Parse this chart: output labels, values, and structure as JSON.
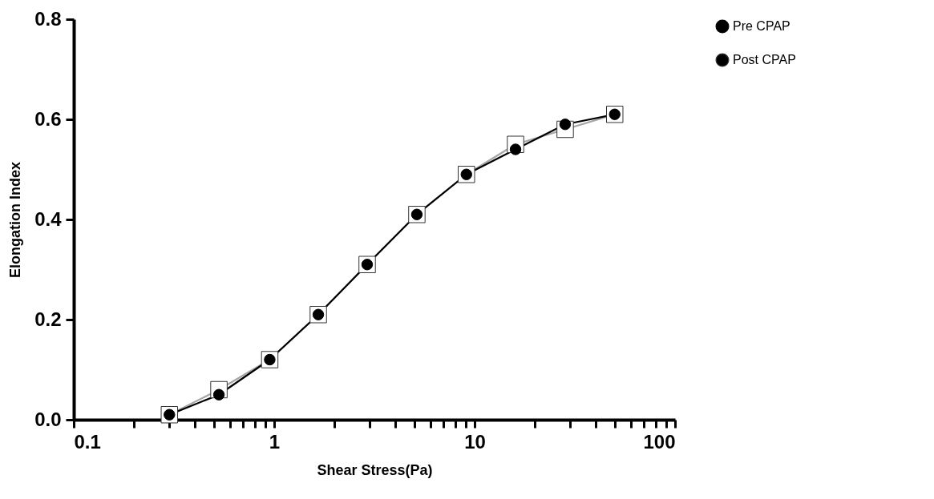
{
  "chart_data": {
    "type": "line",
    "xlabel": "Shear Stress(Pa)",
    "ylabel": "Elongation Index",
    "log": "x",
    "xlim": [
      0.1,
      100
    ],
    "xticks": [
      0.1,
      {
        "value": 0.2,
        "label": null
      },
      {
        "value": 0.3,
        "label": null
      },
      {
        "value": 0.4,
        "label": null
      },
      {
        "value": 0.5,
        "label": null
      },
      {
        "value": 0.6,
        "label": null
      },
      {
        "value": 0.7,
        "label": null
      },
      {
        "value": 0.8,
        "label": null
      },
      {
        "value": 0.9,
        "label": null
      },
      1,
      {
        "value": 2,
        "label": null
      },
      {
        "value": 3,
        "label": null
      },
      {
        "value": 4,
        "label": null
      },
      {
        "value": 5,
        "label": null
      },
      {
        "value": 6,
        "label": null
      },
      {
        "value": 7,
        "label": null
      },
      {
        "value": 8,
        "label": null
      },
      {
        "value": 9,
        "label": null
      },
      10,
      {
        "value": 20,
        "label": null
      },
      {
        "value": 30,
        "label": null
      },
      {
        "value": 40,
        "label": null
      },
      {
        "value": 50,
        "label": null
      },
      {
        "value": 60,
        "label": null
      },
      {
        "value": 70,
        "label": null
      },
      {
        "value": 80,
        "label": null
      },
      {
        "value": 90,
        "label": null
      },
      100
    ],
    "ylim": [
      0,
      0.8
    ],
    "yticks": [
      {
        "value": 0,
        "label": "0.0"
      },
      {
        "value": 0.2,
        "label": "0.2"
      },
      {
        "value": 0.4,
        "label": "0.4"
      },
      {
        "value": 0.6,
        "label": "0.6"
      },
      {
        "value": 0.8,
        "label": "0.8"
      }
    ],
    "x": [
      0.3,
      0.53,
      0.95,
      1.66,
      2.91,
      5.15,
      9.1,
      16,
      28.3,
      50
    ],
    "grid": false,
    "legend": "top right",
    "series": [
      {
        "name": "Pre CPAP",
        "color": "#000000",
        "marker": "circle",
        "values": [
          0.01,
          0.05,
          0.12,
          0.21,
          0.31,
          0.41,
          0.49,
          0.54,
          0.59,
          0.61
        ]
      },
      {
        "name": "Post CPAP",
        "color": "#a6a6a6",
        "marker": "square",
        "values": [
          0.01,
          0.06,
          0.12,
          0.21,
          0.31,
          0.41,
          0.49,
          0.55,
          0.58,
          0.61
        ]
      }
    ]
  }
}
